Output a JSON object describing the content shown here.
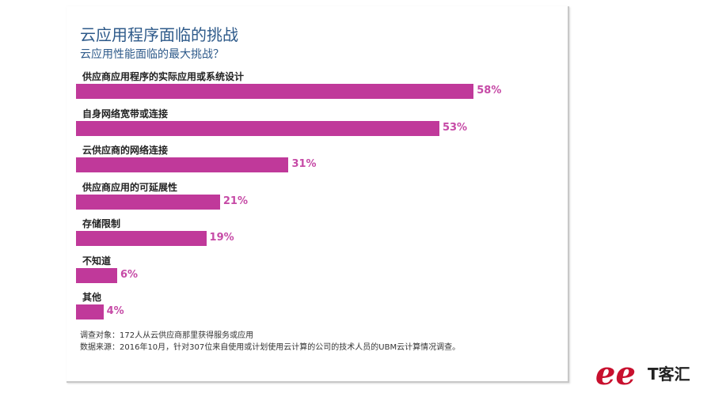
{
  "header": {
    "title": "云应用程序面临的挑战",
    "subtitle": "云应用性能面临的最大挑战？"
  },
  "chart_data": {
    "type": "bar",
    "orientation": "horizontal",
    "title": "云应用程序面临的挑战",
    "subtitle": "云应用性能面临的最大挑战？",
    "categories": [
      "供应商应用程序的实际应用或系统设计",
      "自身网络宽带或连接",
      "云供应商的网络连接",
      "供应商应用的可延展性",
      "存储限制",
      "不知道",
      "其他"
    ],
    "values": [
      58,
      53,
      31,
      21,
      19,
      6,
      4
    ],
    "value_labels": [
      "58%",
      "53%",
      "31%",
      "21%",
      "19%",
      "6%",
      "4%"
    ],
    "unit": "%",
    "xlim": [
      0,
      60
    ],
    "color": "#c0399a",
    "grid": false,
    "legend": "none"
  },
  "footnotes": {
    "line1": "调查对象：172人从云供应商那里获得服务或应用",
    "line2": "数据来源：2016年10月，针对307位来自使用或计划使用云计算的公司的技术人员的UBM云计算情况调查。"
  },
  "logo": {
    "mark": "ee",
    "text": "T客汇",
    "color": "#c8102e"
  }
}
